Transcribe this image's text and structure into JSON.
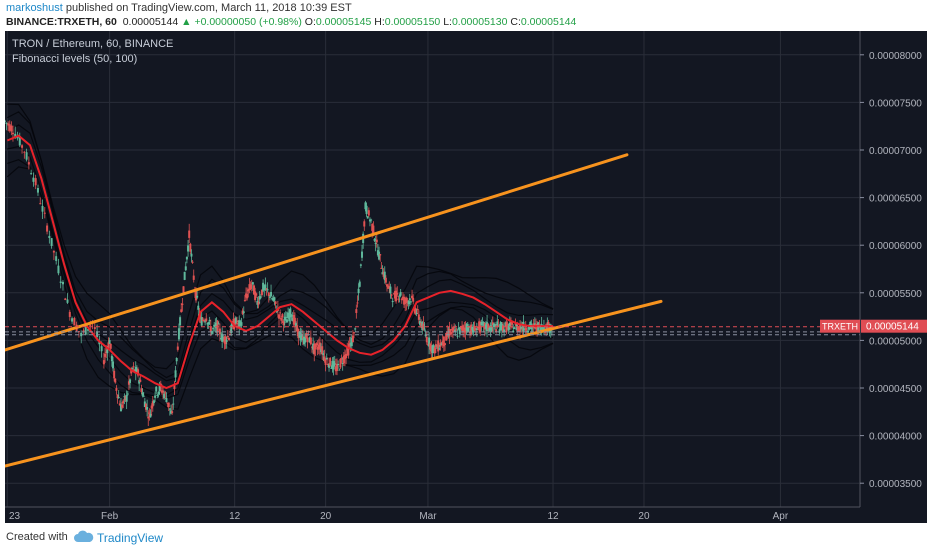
{
  "header": {
    "author": "markoshust",
    "published_text": "published on TradingView.com, March 11, 2018 10:39 EST",
    "symbol_line": "BINANCE:TRXETH, 60",
    "last_price": "0.00005144",
    "change_icon": "triangle-up-icon",
    "change_text": "+0.00000050 (+0.98%)",
    "o_label": "O:",
    "o_value": "0.00005145",
    "h_label": "H:",
    "h_value": "0.00005150",
    "l_label": "L:",
    "l_value": "0.00005130",
    "c_label": "C:",
    "c_value": "0.00005144"
  },
  "chart_overlay": {
    "title": "TRON / Ethereum, 60, BINANCE",
    "indicator": "Fibonacci levels (50, 100)"
  },
  "footer": {
    "created_with": "Created with",
    "brand": "TradingView",
    "logo_icon": "tradingview-cloud-icon"
  },
  "colors": {
    "background": "#131722",
    "grid": "#2a2e39",
    "candle_up": "#5fb89b",
    "candle_down": "#e05252",
    "channel": "#f7931e",
    "moving_average": "#e8222a",
    "bands": "#000000",
    "price_label_bg": "#e04d54",
    "positive": "#22a046",
    "author_link": "#1e88c8"
  },
  "chart_data": {
    "type": "line",
    "title": "TRON / Ethereum, 60, BINANCE",
    "xlabel": "",
    "ylabel": "",
    "grid": true,
    "x_ticks": [
      {
        "label": "23",
        "day": -9
      },
      {
        "label": "Feb",
        "day": 0
      },
      {
        "label": "12",
        "day": 11
      },
      {
        "label": "20",
        "day": 19
      },
      {
        "label": "Mar",
        "day": 28
      },
      {
        "label": "12",
        "day": 39
      },
      {
        "label": "20",
        "day": 47
      },
      {
        "label": "Apr",
        "day": 59
      }
    ],
    "xlim": [
      -9.2,
      66
    ],
    "y_ticks": [
      "0.00003500",
      "0.00004000",
      "0.00004500",
      "0.00005000",
      "0.00005500",
      "0.00006000",
      "0.00006500",
      "0.00007000",
      "0.00007500",
      "0.00008000"
    ],
    "ylim": [
      3.25e-05,
      8.25e-05
    ],
    "current_price": {
      "symbol": "TRXETH",
      "value": 5.144e-05,
      "label": "0.00005144"
    },
    "reference_lines": [
      5.144e-05,
      5.09e-05,
      5.06e-05
    ],
    "channel_lines": [
      {
        "name": "upper",
        "x": [
          -9.2,
          45.5
        ],
        "y": [
          4.9e-05,
          6.95e-05
        ]
      },
      {
        "name": "lower",
        "x": [
          -9.2,
          48.5
        ],
        "y": [
          3.68e-05,
          5.41e-05
        ]
      }
    ],
    "price_series": {
      "x": [
        -9.2,
        -8.5,
        -7.5,
        -6.5,
        -5.5,
        -4.5,
        -3.5,
        -2.5,
        -1.5,
        -0.5,
        0,
        0.5,
        1,
        1.5,
        2,
        2.5,
        3,
        3.5,
        4,
        4.5,
        5,
        5.5,
        6,
        6.5,
        7,
        7.5,
        8,
        8.5,
        9,
        9.5,
        10,
        10.5,
        11,
        11.5,
        12,
        12.5,
        13,
        13.5,
        14,
        14.5,
        15,
        15.5,
        16,
        16.5,
        17,
        17.5,
        18,
        18.5,
        19,
        19.5,
        20,
        20.5,
        21,
        21.5,
        22,
        22.5,
        23,
        23.5,
        24,
        24.5,
        25,
        25.5,
        26,
        26.5,
        27,
        27.5,
        28,
        28.5,
        29,
        29.5,
        30,
        30.5,
        31,
        31.5,
        32,
        32.5,
        33,
        33.5,
        34,
        34.5,
        35,
        35.5,
        36,
        36.5,
        37,
        37.5,
        38,
        38.5,
        39
      ],
      "y": [
        7.3e-05,
        7.22e-05,
        7e-05,
        6.65e-05,
        6.2e-05,
        5.75e-05,
        5.3e-05,
        5.05e-05,
        5.2e-05,
        4.8e-05,
        5e-05,
        4.55e-05,
        4.3e-05,
        4.4e-05,
        4.7e-05,
        4.65e-05,
        4.4e-05,
        4.2e-05,
        4.45e-05,
        4.5e-05,
        4.4e-05,
        4.2e-05,
        4.95e-05,
        5.55e-05,
        6.1e-05,
        5.55e-05,
        5.2e-05,
        5.25e-05,
        5.1e-05,
        5.15e-05,
        5e-05,
        5.05e-05,
        5.2e-05,
        5.15e-05,
        5.45e-05,
        5.6e-05,
        5.4e-05,
        5.55e-05,
        5.5e-05,
        5.4e-05,
        5.25e-05,
        5.2e-05,
        5.3e-05,
        5.1e-05,
        5e-05,
        5.05e-05,
        4.9e-05,
        4.95e-05,
        4.8e-05,
        4.75e-05,
        4.7e-05,
        4.8e-05,
        4.9e-05,
        5.05e-05,
        5.6e-05,
        6.4e-05,
        6.25e-05,
        6e-05,
        5.75e-05,
        5.55e-05,
        5.45e-05,
        5.5e-05,
        5.4e-05,
        5.45e-05,
        5.3e-05,
        5.15e-05,
        5e-05,
        4.9e-05,
        4.95e-05,
        5e-05,
        5.1e-05,
        5.08e-05,
        5.12e-05,
        5.14e-05,
        5.1e-05,
        5.14e-05,
        5.14e-05,
        5.14e-05,
        5.14e-05,
        5.14e-05,
        5.14e-05,
        5.14e-05,
        5.14e-05,
        5.14e-05,
        5.14e-05,
        5.14e-05,
        5.14e-05,
        5.14e-05,
        5.14e-05
      ]
    },
    "moving_average": {
      "x": [
        -9,
        -8,
        -7,
        -6,
        -5,
        -4,
        -3,
        -2,
        -1,
        0,
        1,
        2,
        3,
        4,
        5,
        6,
        7,
        8,
        9,
        10,
        11,
        12,
        13,
        14,
        15,
        16,
        17,
        18,
        19,
        20,
        21,
        22,
        23,
        24,
        25,
        26,
        27,
        28,
        29,
        30,
        31,
        32,
        33,
        34,
        35,
        36,
        37,
        38,
        39
      ],
      "y": [
        7.1e-05,
        7.15e-05,
        7.05e-05,
        6.7e-05,
        6.25e-05,
        5.8e-05,
        5.4e-05,
        5.15e-05,
        5e-05,
        4.9e-05,
        4.78e-05,
        4.68e-05,
        4.62e-05,
        4.55e-05,
        4.5e-05,
        4.55e-05,
        4.95e-05,
        5.3e-05,
        5.4e-05,
        5.3e-05,
        5.15e-05,
        5.1e-05,
        5.15e-05,
        5.25e-05,
        5.35e-05,
        5.38e-05,
        5.3e-05,
        5.2e-05,
        5.1e-05,
        5e-05,
        4.92e-05,
        4.87e-05,
        4.85e-05,
        4.9e-05,
        5e-05,
        5.15e-05,
        5.4e-05,
        5.45e-05,
        5.5e-05,
        5.52e-05,
        5.49e-05,
        5.45e-05,
        5.38e-05,
        5.3e-05,
        5.22e-05,
        5.17e-05,
        5.15e-05,
        5.15e-05,
        5.15e-05
      ]
    }
  }
}
